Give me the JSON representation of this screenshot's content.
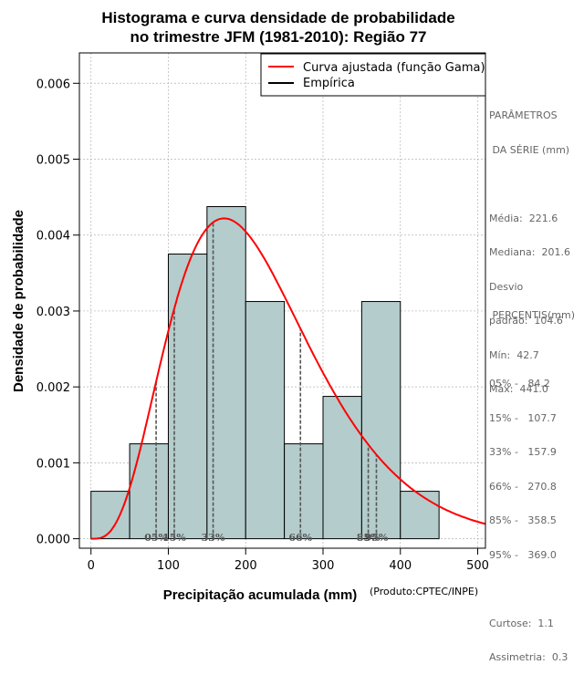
{
  "chart_data": {
    "type": "bar",
    "title_line1": "Histograma e curva densidade de probabilidade",
    "title_line2": "no trimestre JFM (1981-2010): Região 77",
    "xlabel": "Precipitação acumulada (mm)",
    "ylabel": "Densidade de probabilidade",
    "credit": "(Produto:CPTEC/INPE)",
    "xlim": [
      -15,
      510
    ],
    "ylim": [
      -0.000125,
      0.0064
    ],
    "x_ticks": [
      {
        "value": 0,
        "label": "0"
      },
      {
        "value": 100,
        "label": "100"
      },
      {
        "value": 200,
        "label": "200"
      },
      {
        "value": 300,
        "label": "300"
      },
      {
        "value": 400,
        "label": "400"
      },
      {
        "value": 500,
        "label": "500"
      }
    ],
    "y_ticks": [
      {
        "value": 0,
        "label": "0.000"
      },
      {
        "value": 0.001,
        "label": "0.001"
      },
      {
        "value": 0.002,
        "label": "0.002"
      },
      {
        "value": 0.003,
        "label": "0.003"
      },
      {
        "value": 0.004,
        "label": "0.004"
      },
      {
        "value": 0.005,
        "label": "0.005"
      },
      {
        "value": 0.006,
        "label": "0.006"
      }
    ],
    "bins": [
      {
        "from": 0,
        "to": 50,
        "density": 0.000625
      },
      {
        "from": 50,
        "to": 100,
        "density": 0.00125
      },
      {
        "from": 100,
        "to": 150,
        "density": 0.00375
      },
      {
        "from": 150,
        "to": 200,
        "density": 0.004375
      },
      {
        "from": 200,
        "to": 250,
        "density": 0.003125
      },
      {
        "from": 250,
        "to": 300,
        "density": 0.00125
      },
      {
        "from": 300,
        "to": 350,
        "density": 0.001875
      },
      {
        "from": 350,
        "to": 400,
        "density": 0.003125
      },
      {
        "from": 400,
        "to": 450,
        "density": 0.000625
      }
    ],
    "gamma_curve": {
      "shape": 4.5,
      "mode": 172,
      "peak": 0.00422,
      "x_max": 510
    },
    "percentile_markers": [
      {
        "label": "05%",
        "value": 84.2
      },
      {
        "label": "15%",
        "value": 107.7
      },
      {
        "label": "33%",
        "value": 157.9
      },
      {
        "label": "66%",
        "value": 270.8
      },
      {
        "label": "85%",
        "value": 358.5
      },
      {
        "label": "95%",
        "value": 369.0
      }
    ],
    "legend": [
      {
        "label": "Curva ajustada (função Gama)",
        "color": "#ff0000"
      },
      {
        "label": "Empírica",
        "color": "#000000"
      }
    ],
    "legend_position": "top-right",
    "grid": true
  },
  "colors": {
    "bar_fill": "#b4cccc",
    "curve": "#ff0000",
    "percentile_line": "#555555",
    "grid": "#b3b3b3"
  },
  "stats": {
    "title1": "PARÂMETROS",
    "title2": " DA SÉRIE (mm)",
    "media": "Média:  221.6",
    "mediana": "Mediana:  201.6",
    "desvio1": "Desvio",
    "desvio2": "padrão:  104.6",
    "min": "Mín:  42.7",
    "max": "Máx:  441.0"
  },
  "percentis": {
    "title": " PERCENTIS(mm)",
    "p05": "05% -   84.2",
    "p15": "15% -   107.7",
    "p33": "33% -   157.9",
    "p66": "66% -   270.8",
    "p85": "85% -   358.5",
    "p95": "95% -   369.0",
    "curtose": "Curtose:  1.1",
    "assimetria": "Assimetria:  0.3"
  }
}
